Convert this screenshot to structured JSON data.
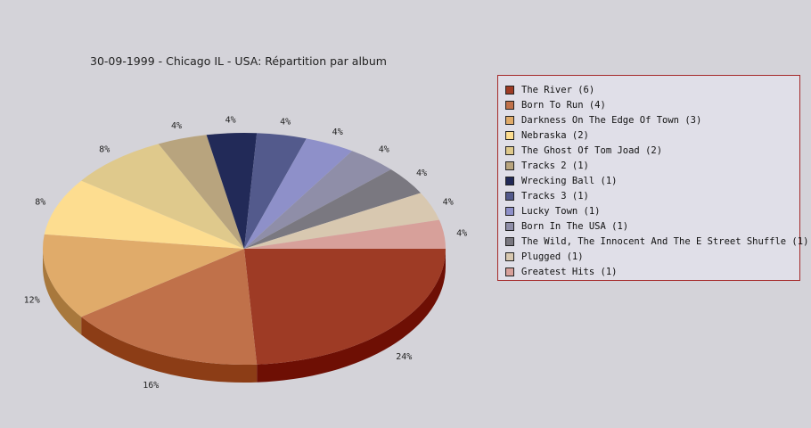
{
  "chart_data": {
    "type": "pie",
    "title": "30-09-1999 - Chicago IL - USA:  Répartition par album",
    "slices": [
      {
        "label": "The River (6)",
        "value": 6,
        "percent_label": "24%",
        "color": "#9e3b25",
        "side_color": "#6e0f04"
      },
      {
        "label": "Born To Run (4)",
        "value": 4,
        "percent_label": "16%",
        "color": "#c0714a",
        "side_color": "#8c3d16"
      },
      {
        "label": "Darkness On The Edge Of Town (3)",
        "value": 3,
        "percent_label": "12%",
        "color": "#e0ab6a",
        "side_color": "#a8783c"
      },
      {
        "label": "Nebraska (2)",
        "value": 2,
        "percent_label": "8%",
        "color": "#fddd90",
        "side_color": "#c4a45a"
      },
      {
        "label": "The Ghost Of Tom Joad (2)",
        "value": 2,
        "percent_label": "8%",
        "color": "#dfc98c",
        "side_color": "#a8955a"
      },
      {
        "label": "Tracks 2 (1)",
        "value": 1,
        "percent_label": "4%",
        "color": "#b8a47e",
        "side_color": "#86744e"
      },
      {
        "label": "Wrecking Ball (1)",
        "value": 1,
        "percent_label": "4%",
        "color": "#222a58",
        "side_color": "#10163a"
      },
      {
        "label": "Tracks 3 (1)",
        "value": 1,
        "percent_label": "4%",
        "color": "#535a8c",
        "side_color": "#30365e"
      },
      {
        "label": "Lucky Town (1)",
        "value": 1,
        "percent_label": "4%",
        "color": "#8e90c9",
        "side_color": "#5e6094"
      },
      {
        "label": "Born In The USA (1)",
        "value": 1,
        "percent_label": "4%",
        "color": "#8f8ea8",
        "side_color": "#62617a"
      },
      {
        "label": "The Wild, The Innocent And The E Street Shuffle (1)",
        "value": 1,
        "percent_label": "4%",
        "color": "#7a7880",
        "side_color": "#4e4c54"
      },
      {
        "label": "Plugged (1)",
        "value": 1,
        "percent_label": "4%",
        "color": "#d8c8b0",
        "side_color": "#a8987e"
      },
      {
        "label": "Greatest Hits (1)",
        "value": 1,
        "percent_label": "4%",
        "color": "#d7a09a",
        "side_color": "#a8706a"
      }
    ],
    "legend_position": "right"
  }
}
